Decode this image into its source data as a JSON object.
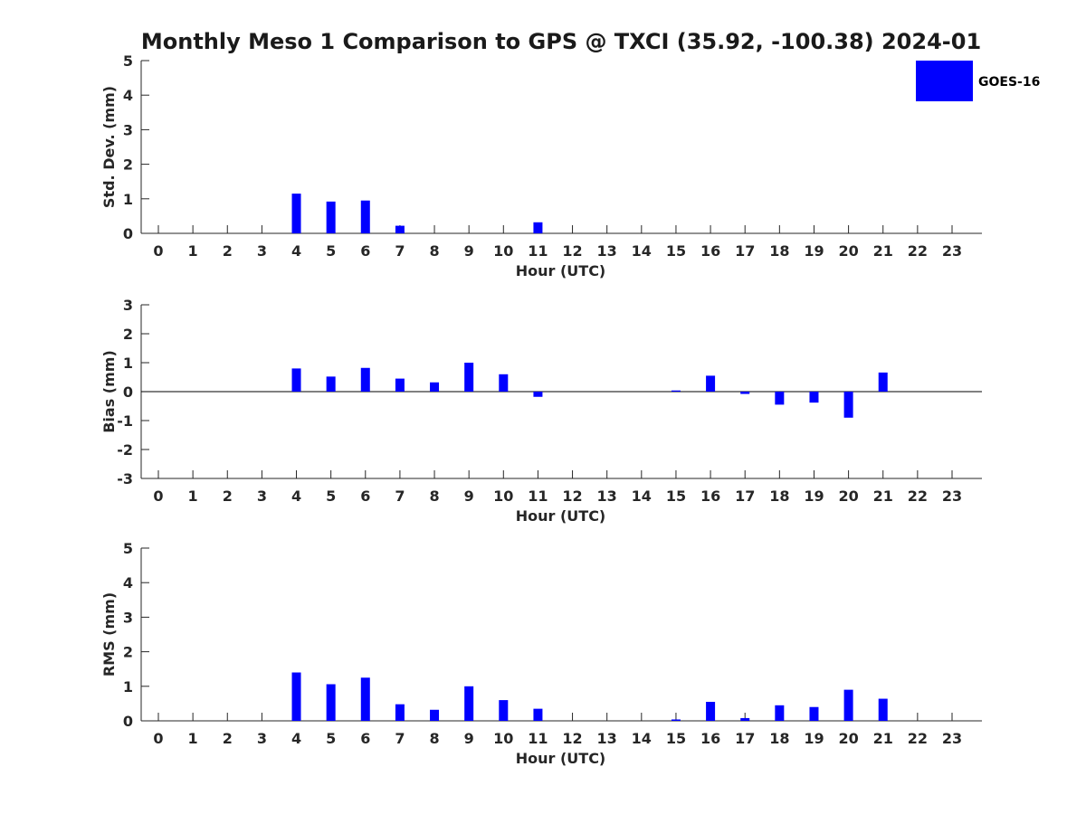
{
  "title": "Monthly Meso 1 Comparison to GPS @ TXCI (35.92, -100.38) 2024-01",
  "colors": {
    "bar": "#0000ff",
    "axis": "#262626",
    "zero_line": "#000000"
  },
  "chart_data": [
    {
      "type": "bar",
      "x": [
        0,
        1,
        2,
        3,
        4,
        5,
        6,
        7,
        8,
        9,
        10,
        11,
        12,
        13,
        14,
        15,
        16,
        17,
        18,
        19,
        20,
        21,
        22,
        23
      ],
      "xlabel": "Hour (UTC)",
      "ylabel": "Std. Dev. (mm)",
      "ylim": [
        0,
        5
      ],
      "yticks": [
        0,
        1,
        2,
        3,
        4,
        5
      ],
      "legend": {
        "position": "top-right"
      },
      "series": [
        {
          "name": "GOES-16",
          "values": [
            null,
            null,
            null,
            null,
            1.15,
            0.92,
            0.95,
            0.22,
            null,
            null,
            null,
            0.32,
            null,
            null,
            null,
            null,
            null,
            null,
            null,
            null,
            null,
            null,
            null,
            null
          ]
        }
      ]
    },
    {
      "type": "bar",
      "x": [
        0,
        1,
        2,
        3,
        4,
        5,
        6,
        7,
        8,
        9,
        10,
        11,
        12,
        13,
        14,
        15,
        16,
        17,
        18,
        19,
        20,
        21,
        22,
        23
      ],
      "xlabel": "Hour (UTC)",
      "ylabel": "Bias (mm)",
      "ylim": [
        -3,
        3
      ],
      "yticks": [
        -3,
        -2,
        -1,
        0,
        1,
        2,
        3
      ],
      "series": [
        {
          "name": "GOES-16",
          "values": [
            null,
            null,
            null,
            null,
            0.8,
            0.52,
            0.82,
            0.45,
            0.32,
            1.0,
            0.6,
            -0.18,
            null,
            null,
            null,
            0.04,
            0.55,
            -0.08,
            -0.45,
            -0.38,
            -0.9,
            0.66,
            null,
            null
          ]
        }
      ]
    },
    {
      "type": "bar",
      "x": [
        0,
        1,
        2,
        3,
        4,
        5,
        6,
        7,
        8,
        9,
        10,
        11,
        12,
        13,
        14,
        15,
        16,
        17,
        18,
        19,
        20,
        21,
        22,
        23
      ],
      "xlabel": "Hour (UTC)",
      "ylabel": "RMS (mm)",
      "ylim": [
        0,
        5
      ],
      "yticks": [
        0,
        1,
        2,
        3,
        4,
        5
      ],
      "series": [
        {
          "name": "GOES-16",
          "values": [
            null,
            null,
            null,
            null,
            1.4,
            1.06,
            1.25,
            0.48,
            0.32,
            1.0,
            0.6,
            0.35,
            null,
            null,
            null,
            0.04,
            0.55,
            0.08,
            0.45,
            0.4,
            0.9,
            0.64,
            null,
            null
          ]
        }
      ]
    }
  ]
}
